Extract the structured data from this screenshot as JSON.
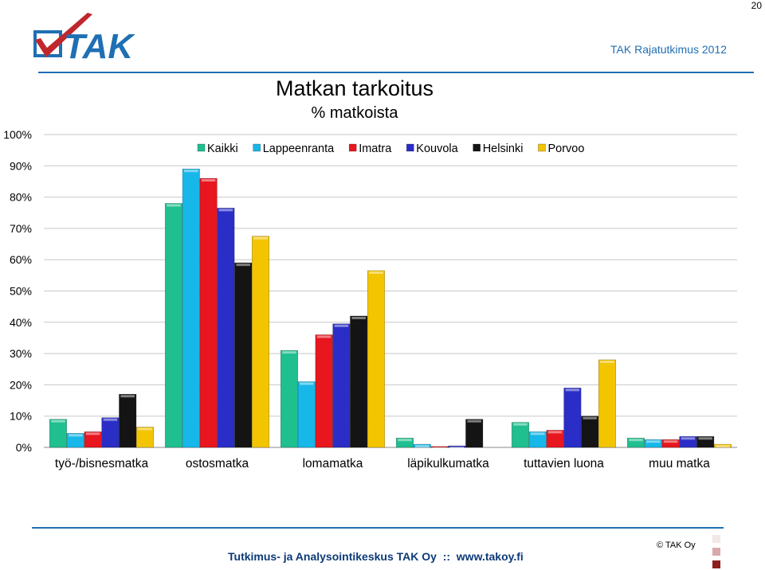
{
  "page_number": "20",
  "header": {
    "survey_name": "TAK Rajatutkimus 2012",
    "logo_text": "TAK"
  },
  "footer": {
    "text": "Tutkimus- ja Analysointikeskus TAK Oy  ::  www.takoy.fi",
    "copyright": "© TAK Oy",
    "square_colors": [
      "#f3e6e6",
      "#d9a9a9",
      "#8e1c1c"
    ]
  },
  "colors": {
    "accent": "#1f6fb3",
    "footer_text": "#0d3a78"
  },
  "chart_data": {
    "type": "bar",
    "title": "Matkan tarkoitus",
    "subtitle": "% matkoista",
    "xlabel": "",
    "ylabel": "",
    "ylim": [
      0,
      100
    ],
    "y_ticks": [
      "0%",
      "10%",
      "20%",
      "30%",
      "40%",
      "50%",
      "60%",
      "70%",
      "80%",
      "90%",
      "100%"
    ],
    "grid": true,
    "legend_position": "top",
    "categories": [
      "työ-/bisnesmatka",
      "ostosmatka",
      "lomamatka",
      "läpikulkumatka",
      "tuttavien luona",
      "muu matka"
    ],
    "series": [
      {
        "name": "Kaikki",
        "color": "#1fbf8f",
        "values": [
          9,
          78,
          31,
          3,
          8,
          3
        ]
      },
      {
        "name": "Lappeenranta",
        "color": "#17b7ea",
        "values": [
          4.5,
          89,
          21,
          1,
          5,
          2.5
        ]
      },
      {
        "name": "Imatra",
        "color": "#e8161e",
        "values": [
          5,
          86,
          36,
          0.3,
          5.5,
          2.5
        ]
      },
      {
        "name": "Kouvola",
        "color": "#2a2ec6",
        "values": [
          9.5,
          76.5,
          39.5,
          0.5,
          19,
          3.5
        ]
      },
      {
        "name": "Helsinki",
        "color": "#141414",
        "values": [
          17,
          59,
          42,
          9,
          10,
          3.5
        ]
      },
      {
        "name": "Porvoo",
        "color": "#f3c400",
        "values": [
          6.5,
          67.5,
          56.5,
          0,
          28,
          1
        ]
      }
    ]
  }
}
